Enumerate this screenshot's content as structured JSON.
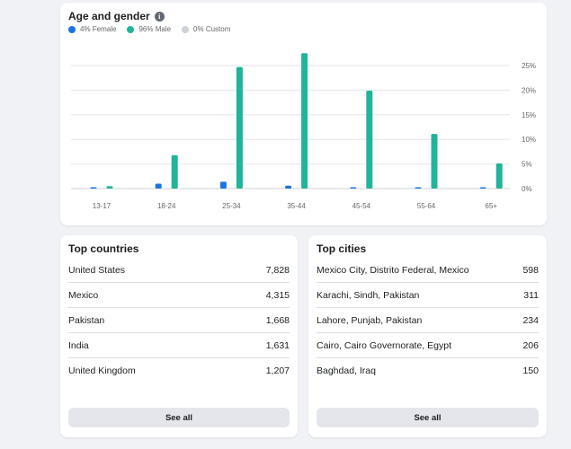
{
  "age_gender": {
    "title": "Age and gender",
    "legend": [
      {
        "label": "4% Female",
        "color": "#1b74e4"
      },
      {
        "label": "96% Male",
        "color": "#20b59a"
      },
      {
        "label": "0% Custom",
        "color": "#cfd2d6"
      }
    ]
  },
  "chart_data": {
    "type": "bar",
    "categories": [
      "13-17",
      "18-24",
      "25-34",
      "35-44",
      "45-54",
      "55-64",
      "65+"
    ],
    "series": [
      {
        "name": "Female",
        "color": "#1b74e4",
        "values": [
          0.1,
          1.0,
          1.4,
          0.6,
          0.2,
          0.1,
          0.1
        ]
      },
      {
        "name": "Male",
        "color": "#20b59a",
        "values": [
          0.5,
          6.8,
          24.7,
          27.5,
          19.9,
          11.1,
          5.1
        ]
      }
    ],
    "y_ticks": [
      "0%",
      "5%",
      "10%",
      "15%",
      "20%",
      "25%"
    ],
    "ylim": [
      0,
      25
    ],
    "y_axis_side": "right",
    "grid": true
  },
  "top_countries": {
    "title": "Top countries",
    "rows": [
      {
        "name": "United States",
        "value": "7,828"
      },
      {
        "name": "Mexico",
        "value": "4,315"
      },
      {
        "name": "Pakistan",
        "value": "1,668"
      },
      {
        "name": "India",
        "value": "1,631"
      },
      {
        "name": "United Kingdom",
        "value": "1,207"
      }
    ],
    "button_label": "See all"
  },
  "top_cities": {
    "title": "Top cities",
    "rows": [
      {
        "name": "Mexico City, Distrito Federal, Mexico",
        "value": "598"
      },
      {
        "name": "Karachi, Sindh, Pakistan",
        "value": "311"
      },
      {
        "name": "Lahore, Punjab, Pakistan",
        "value": "234"
      },
      {
        "name": "Cairo, Cairo Governorate, Egypt",
        "value": "206"
      },
      {
        "name": "Baghdad, Iraq",
        "value": "150"
      }
    ],
    "button_label": "See all"
  }
}
